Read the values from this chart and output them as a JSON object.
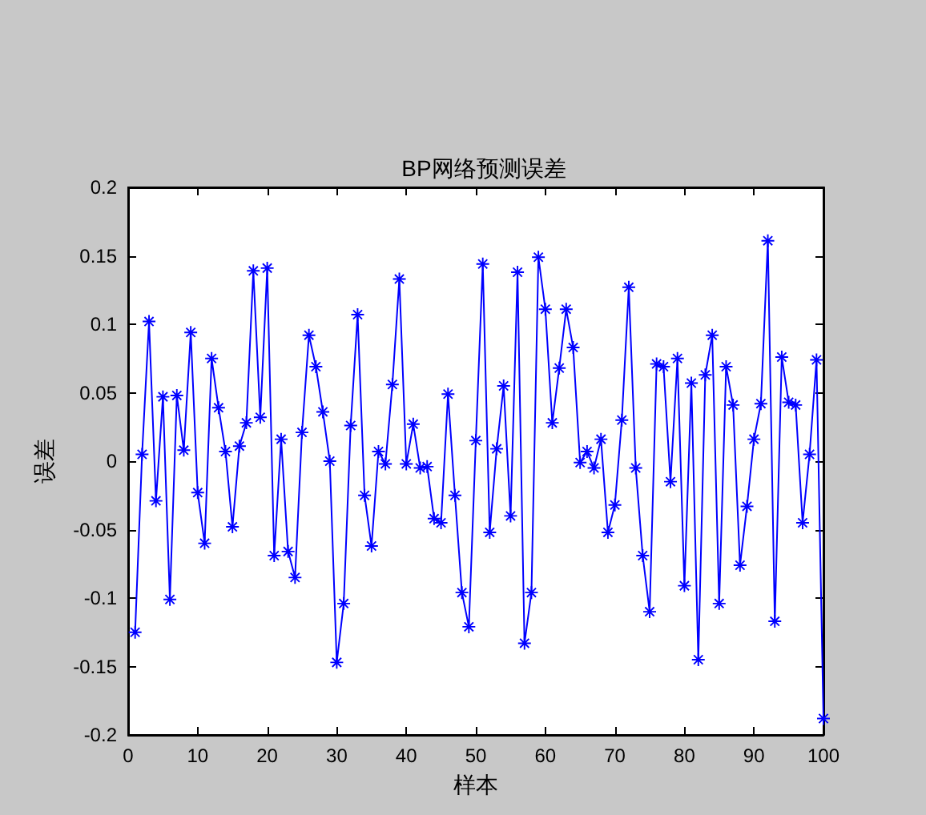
{
  "chart_data": {
    "type": "line",
    "title": "BP网络预测误差",
    "xlabel": "样本",
    "ylabel": "误差",
    "x": [
      1,
      2,
      3,
      4,
      5,
      6,
      7,
      8,
      9,
      10,
      11,
      12,
      13,
      14,
      15,
      16,
      17,
      18,
      19,
      20,
      21,
      22,
      23,
      24,
      25,
      26,
      27,
      28,
      29,
      30,
      31,
      32,
      33,
      34,
      35,
      36,
      37,
      38,
      39,
      40,
      41,
      42,
      43,
      44,
      45,
      46,
      47,
      48,
      49,
      50,
      51,
      52,
      53,
      54,
      55,
      56,
      57,
      58,
      59,
      60,
      61,
      62,
      63,
      64,
      65,
      66,
      67,
      68,
      69,
      70,
      71,
      72,
      73,
      74,
      75,
      76,
      77,
      78,
      79,
      80,
      81,
      82,
      83,
      84,
      85,
      86,
      87,
      88,
      89,
      90,
      91,
      92,
      93,
      94,
      95,
      96,
      97,
      98,
      99,
      100
    ],
    "values": [
      -0.125,
      0.005,
      0.102,
      -0.029,
      0.047,
      -0.101,
      0.048,
      0.008,
      0.094,
      -0.023,
      -0.06,
      0.075,
      0.039,
      0.007,
      -0.048,
      0.011,
      0.028,
      0.139,
      0.032,
      0.141,
      -0.069,
      0.016,
      -0.066,
      -0.085,
      0.021,
      0.092,
      0.069,
      0.036,
      0.0,
      -0.147,
      -0.104,
      0.026,
      0.107,
      -0.025,
      -0.062,
      0.007,
      -0.002,
      0.056,
      0.133,
      -0.002,
      0.027,
      -0.005,
      -0.004,
      -0.042,
      -0.045,
      0.049,
      -0.025,
      -0.096,
      -0.121,
      0.015,
      0.144,
      -0.052,
      0.009,
      0.055,
      -0.04,
      0.138,
      -0.133,
      -0.096,
      0.149,
      0.111,
      0.028,
      0.068,
      0.111,
      0.083,
      -0.001,
      0.007,
      -0.005,
      0.016,
      -0.052,
      -0.032,
      0.03,
      0.127,
      -0.005,
      -0.069,
      -0.11,
      0.071,
      0.069,
      -0.015,
      0.075,
      -0.091,
      0.057,
      -0.145,
      0.063,
      0.092,
      -0.104,
      0.069,
      0.041,
      -0.076,
      -0.033,
      0.016,
      0.042,
      0.161,
      -0.117,
      0.076,
      0.043,
      0.041,
      -0.045,
      0.005,
      0.074,
      -0.188
    ],
    "color": "#0000ff",
    "marker": "cross",
    "line_style": "solid",
    "xlim": [
      0,
      100
    ],
    "xticks": [
      0,
      10,
      20,
      30,
      40,
      50,
      60,
      70,
      80,
      90,
      100
    ],
    "ylim": [
      -0.2,
      0.2
    ],
    "yticks": [
      -0.2,
      -0.15,
      -0.1,
      -0.05,
      0,
      0.05,
      0.1,
      0.15,
      0.2
    ],
    "grid": false,
    "legend": false
  }
}
